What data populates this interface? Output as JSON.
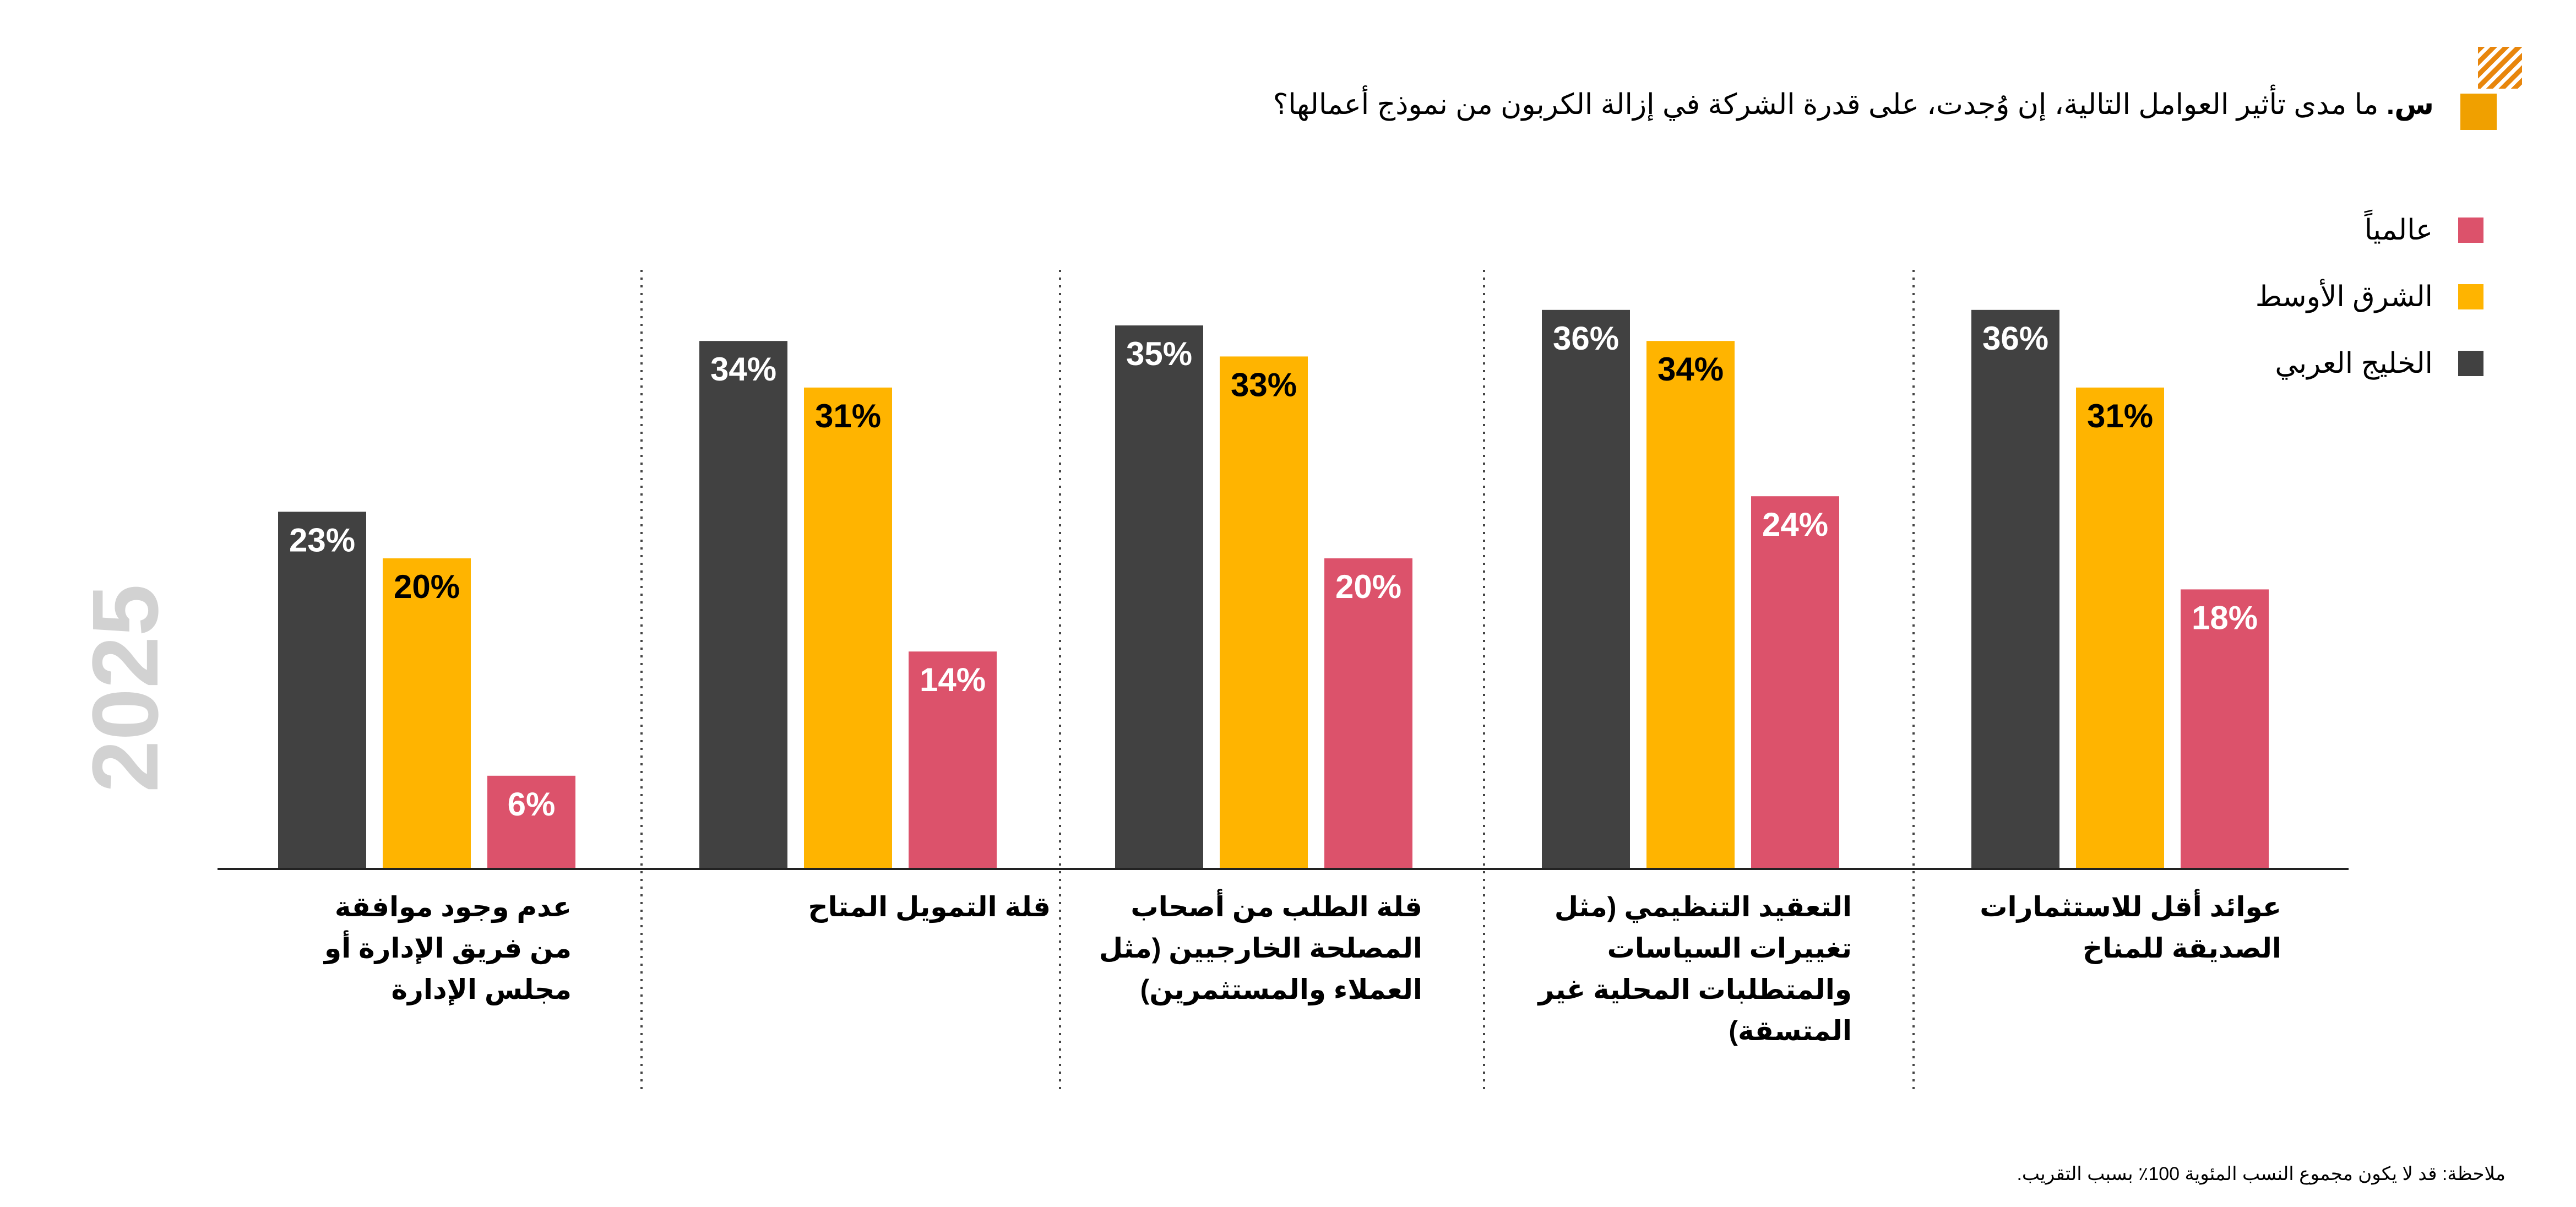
{
  "question": {
    "prefix": "س.",
    "text": "ما مدى تأثير العوامل التالية، إن وُجدت، على قدرة الشركة في إزالة الكربون من نموذج أعمالها؟"
  },
  "year": "2025",
  "colors": {
    "gulf": "#414141",
    "middle_east": "#ffb400",
    "global": "#dc526b",
    "corner_accent": "#e8860c"
  },
  "legend": [
    {
      "label": "عالمياً",
      "color": "#dc526b"
    },
    {
      "label": "الشرق الأوسط",
      "color": "#ffb400"
    },
    {
      "label": "الخليج العربي",
      "color": "#414141"
    }
  ],
  "chart_data": {
    "type": "bar",
    "categories": [
      "عدم وجود موافقة من فريق الإدارة أو مجلس الإدارة",
      "قلة التمويل المتاح",
      "قلة الطلب من أصحاب المصلحة الخارجيين (مثل العملاء والمستثمرين)",
      "التعقيد التنظيمي (مثل تغييرات السياسات والمتطلبات المحلية غير المتسقة)",
      "عوائد أقل للاستثمارات الصديقة للمناخ"
    ],
    "series": [
      {
        "name": "الخليج العربي",
        "values": [
          23,
          34,
          35,
          36,
          36
        ],
        "labels": [
          "23%",
          "34%",
          "35%",
          "36%",
          "36%"
        ]
      },
      {
        "name": "الشرق الأوسط",
        "values": [
          20,
          31,
          33,
          34,
          31
        ],
        "labels": [
          "20%",
          "31%",
          "33%",
          "34%",
          "31%"
        ]
      },
      {
        "name": "عالمياً",
        "values": [
          6,
          14,
          20,
          24,
          18
        ],
        "labels": [
          "6%",
          "14%",
          "20%",
          "24%",
          "18%"
        ]
      }
    ],
    "ylim": [
      0,
      40
    ],
    "grid": false
  },
  "footnote": "ملاحظة: قد لا يكون مجموع النسب المئوية 100٪ بسبب التقريب."
}
